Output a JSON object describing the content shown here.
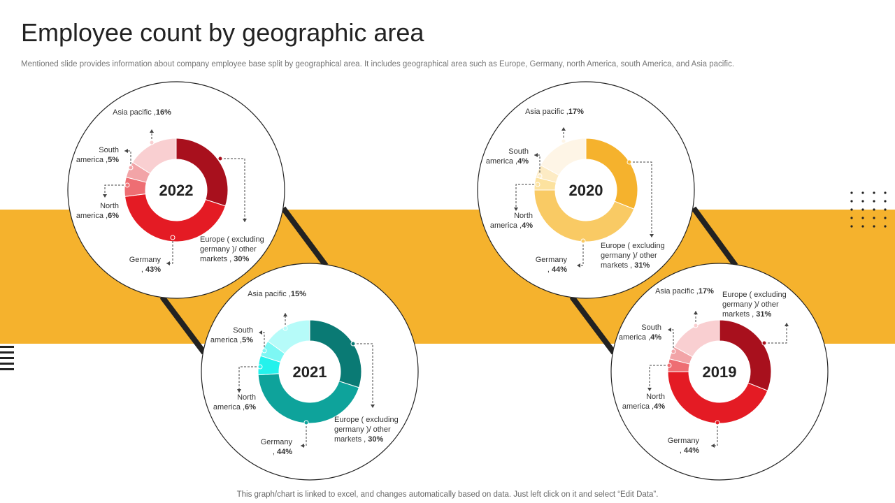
{
  "title": "Employee count by geographic area",
  "subtitle": "Mentioned slide provides information about company employee base split by geographical area. It includes geographical area such as Europe, Germany, north America, south America, and Asia pacific.",
  "footer": "This graph/chart is linked to excel,  and changes automatically based on data. Just left click on it and select “Edit Data”.",
  "colors": {
    "band": "#F5B22D",
    "connector": "#222222",
    "circle_border": "#222222"
  },
  "chart_data": [
    {
      "type": "pie",
      "title": "2022",
      "categories": [
        "Europe ( excluding germany )/ other markets",
        "Germany",
        "North america",
        "South america",
        "Asia pacific"
      ],
      "values": [
        30,
        43,
        6,
        5,
        16
      ],
      "colors": [
        "#A8101D",
        "#E41B24",
        "#EE6E73",
        "#F2A4A7",
        "#F9CFD1"
      ],
      "labels": [
        {
          "lines": [
            "Europe ( excluding",
            "germany )/ other"
          ],
          "last": "markets ,",
          "value": "30%"
        },
        {
          "lines": [
            "Germany"
          ],
          "last": ",",
          "value": "43%"
        },
        {
          "lines": [
            "North",
            "america ,"
          ],
          "last": "",
          "value": "6%"
        },
        {
          "lines": [
            "South",
            "america ,"
          ],
          "last": "",
          "value": "5%"
        },
        {
          "lines": [
            "Asia pacific ,"
          ],
          "last": "",
          "value": "16%"
        }
      ]
    },
    {
      "type": "pie",
      "title": "2021",
      "categories": [
        "Europe ( excluding germany )/ other markets",
        "Germany",
        "North america",
        "South america",
        "Asia pacific"
      ],
      "values": [
        30,
        44,
        6,
        5,
        15
      ],
      "colors": [
        "#0A7A74",
        "#0EA39B",
        "#24F2EC",
        "#7DF7F4",
        "#B6FBF9"
      ],
      "labels": [
        {
          "lines": [
            "Europe ( excluding",
            "germany )/ other"
          ],
          "last": "markets ,",
          "value": "30%"
        },
        {
          "lines": [
            "Germany"
          ],
          "last": ",",
          "value": "44%"
        },
        {
          "lines": [
            "North",
            "america ,"
          ],
          "last": "",
          "value": "6%"
        },
        {
          "lines": [
            "South",
            "america ,"
          ],
          "last": "",
          "value": "5%"
        },
        {
          "lines": [
            "Asia pacific ,"
          ],
          "last": "",
          "value": "15%"
        }
      ]
    },
    {
      "type": "pie",
      "title": "2020",
      "categories": [
        "Europe ( excluding germany )/ other markets",
        "Germany",
        "North america",
        "South america",
        "Asia pacific"
      ],
      "values": [
        31,
        44,
        4,
        4,
        17
      ],
      "colors": [
        "#F5B22D",
        "#F9CA64",
        "#FCE29F",
        "#FDEBC4",
        "#FEF5E6"
      ],
      "labels": [
        {
          "lines": [
            "Europe ( excluding",
            "germany )/ other"
          ],
          "last": "markets ,",
          "value": "31%"
        },
        {
          "lines": [
            "Germany"
          ],
          "last": ",",
          "value": "44%"
        },
        {
          "lines": [
            "North",
            "america ,"
          ],
          "last": "",
          "value": "4%"
        },
        {
          "lines": [
            "South",
            "america ,"
          ],
          "last": "",
          "value": "4%"
        },
        {
          "lines": [
            "Asia pacific ,"
          ],
          "last": "",
          "value": "17%"
        }
      ]
    },
    {
      "type": "pie",
      "title": "2019",
      "categories": [
        "Europe ( excluding germany )/ other markets",
        "Germany",
        "North america",
        "South america",
        "Asia pacific"
      ],
      "values": [
        31,
        44,
        4,
        4,
        17
      ],
      "colors": [
        "#A8101D",
        "#E41B24",
        "#EE6E73",
        "#F2A4A7",
        "#F9CFD1"
      ],
      "labels": [
        {
          "lines": [
            "Europe ( excluding",
            "germany )/ other"
          ],
          "last": "markets ,",
          "value": "31%"
        },
        {
          "lines": [
            "Germany"
          ],
          "last": ",",
          "value": "44%"
        },
        {
          "lines": [
            "North",
            "america ,"
          ],
          "last": "",
          "value": "4%"
        },
        {
          "lines": [
            "South",
            "america ,"
          ],
          "last": "",
          "value": "4%"
        },
        {
          "lines": [
            "Asia pacific ,"
          ],
          "last": "",
          "value": "17%"
        }
      ]
    }
  ]
}
